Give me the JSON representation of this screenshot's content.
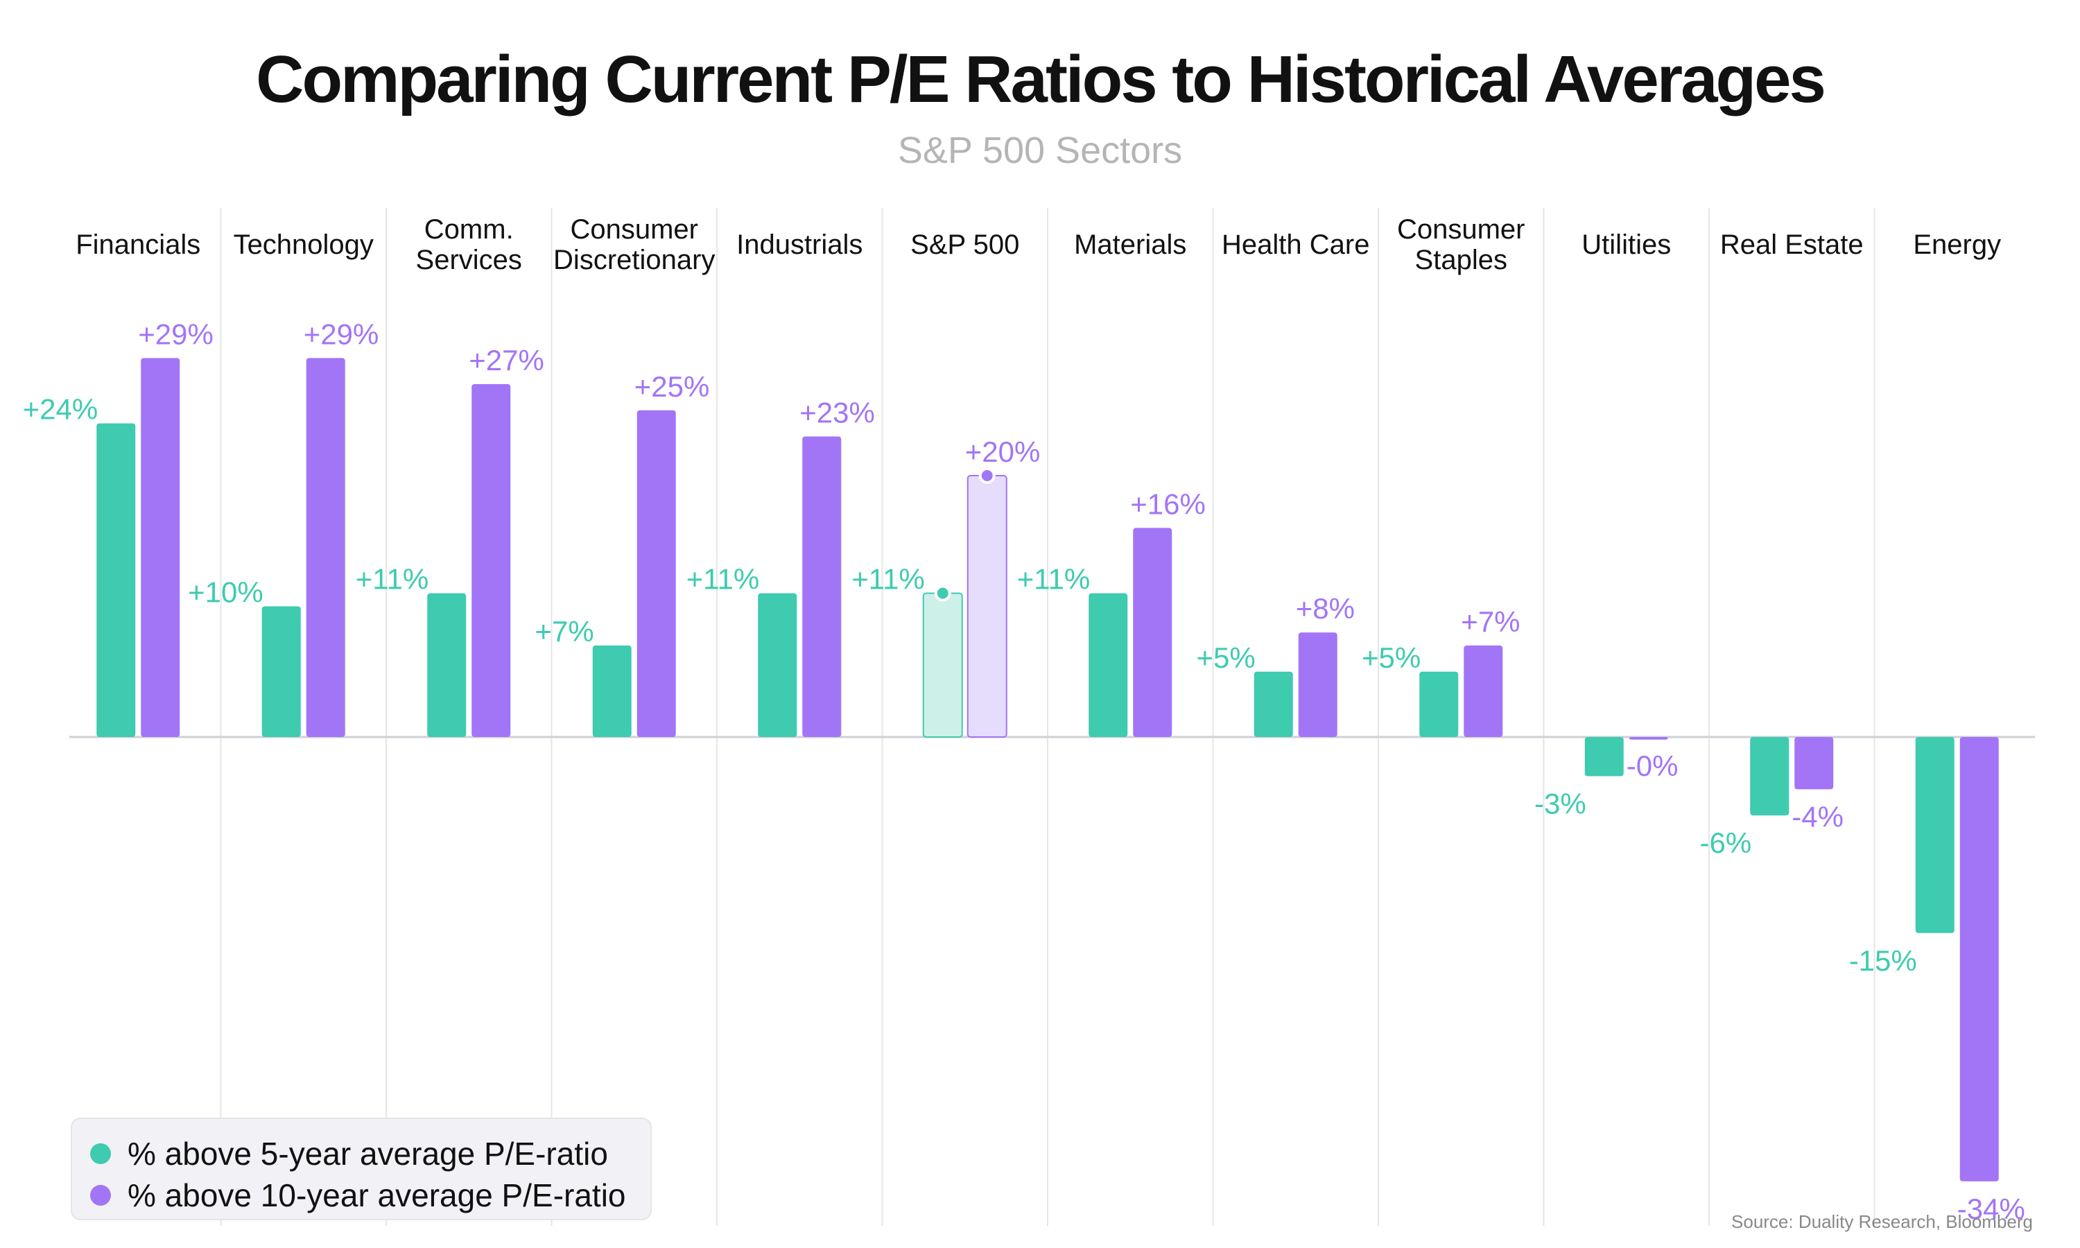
{
  "header": {
    "title": "Comparing Current P/E Ratios to Historical Averages",
    "subtitle": "S&P 500 Sectors"
  },
  "colors": {
    "five_year": "#3ecbb0",
    "ten_year": "#a275f6",
    "five_year_highlight": "#cdf0e9",
    "ten_year_highlight": "#e6dcfb",
    "grid": "#e6e6e6",
    "zero_line": "#cfcfd6"
  },
  "chart_data": {
    "type": "bar",
    "categories": [
      [
        "Financials"
      ],
      [
        "Technology"
      ],
      [
        "Comm.",
        "Services"
      ],
      [
        "Consumer",
        "Discretionary"
      ],
      [
        "Industrials"
      ],
      [
        "S&P 500"
      ],
      [
        "Materials"
      ],
      [
        "Health Care"
      ],
      [
        "Consumer",
        "Staples"
      ],
      [
        "Utilities"
      ],
      [
        "Real Estate"
      ],
      [
        "Energy"
      ]
    ],
    "highlight_category": "S&P 500",
    "series": [
      {
        "name": "% above 5-year average P/E-ratio",
        "values": [
          24,
          10,
          11,
          7,
          11,
          11,
          11,
          5,
          5,
          -3,
          -6,
          -15
        ],
        "labels": [
          "+24%",
          "+10%",
          "+11%",
          "+7%",
          "+11%",
          "+11%",
          "+11%",
          "+5%",
          "+5%",
          "-3%",
          "-6%",
          "-15%"
        ]
      },
      {
        "name": "% above 10-year average P/E-ratio",
        "values": [
          29,
          29,
          27,
          25,
          23,
          20,
          16,
          8,
          7,
          -0.2,
          -4,
          -34
        ],
        "labels": [
          "+29%",
          "+29%",
          "+27%",
          "+25%",
          "+23%",
          "+20%",
          "+16%",
          "+8%",
          "+7%",
          "-0%",
          "-4%",
          "-34%"
        ]
      }
    ],
    "ylim": [
      -37,
      30
    ],
    "grid": true,
    "legend_position": "bottom-left"
  },
  "source": "Source: Duality Research, Bloomberg"
}
